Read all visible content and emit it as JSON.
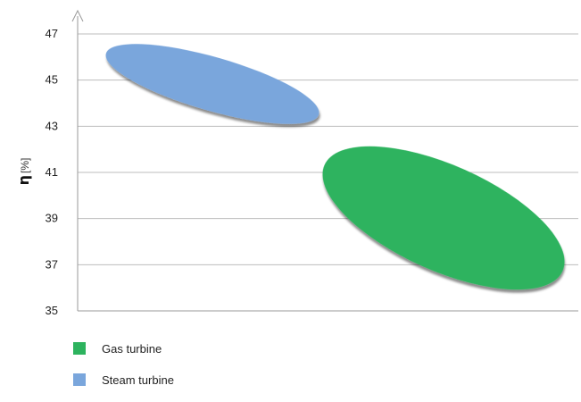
{
  "chart_data": {
    "type": "scatter",
    "title": "",
    "xlabel": "",
    "ylabel_symbol": "η",
    "ylabel_unit": "[%]",
    "ylim": [
      35,
      47
    ],
    "yticks": [
      "35",
      "37",
      "39",
      "41",
      "43",
      "45",
      "47"
    ],
    "grid": true,
    "legend_position": "bottom-left",
    "series": [
      {
        "name": "Gas turbine",
        "color": "#2db35e",
        "region": {
          "y_min": 36.2,
          "y_max": 41.9
        }
      },
      {
        "name": "Steam turbine",
        "color": "#7aa6dc",
        "region": {
          "y_min": 43.3,
          "y_max": 46.2
        }
      }
    ]
  }
}
